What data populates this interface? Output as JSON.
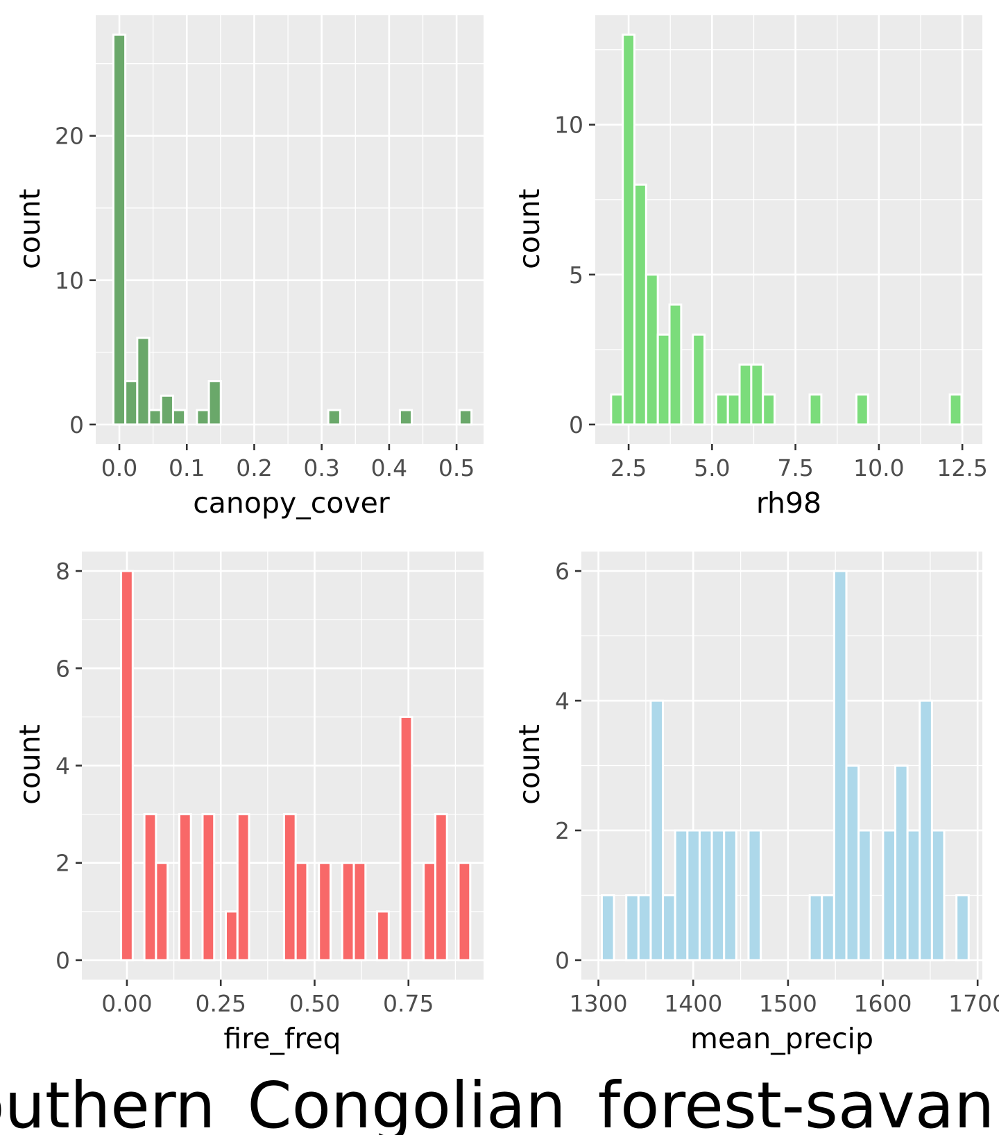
{
  "title": "Southern_Congolian_forest-savanna",
  "chart_data": [
    {
      "type": "bar",
      "xlabel": "canopy_cover",
      "ylabel": "count",
      "color": "#6AA86A",
      "xlim": [
        -0.035,
        0.54
      ],
      "ylim": [
        -1.35,
        28.35
      ],
      "x_ticks": [
        0.0,
        0.1,
        0.2,
        0.3,
        0.4,
        0.5
      ],
      "x_tick_labels": [
        "0.0",
        "0.1",
        "0.2",
        "0.3",
        "0.4",
        "0.5"
      ],
      "y_ticks": [
        0,
        10,
        20
      ],
      "y_tick_labels": [
        "0",
        "10",
        "20"
      ],
      "bin_width": 0.0177,
      "bin_centers": [
        0.0,
        0.0177,
        0.0354,
        0.0531,
        0.0708,
        0.0885,
        0.1239,
        0.1416,
        0.3186,
        0.4248,
        0.5133
      ],
      "counts": [
        27,
        3,
        6,
        1,
        2,
        1,
        1,
        3,
        1,
        1,
        1
      ]
    },
    {
      "type": "bar",
      "xlabel": "rh98",
      "ylabel": "count",
      "color": "#7BDC7B",
      "xlim": [
        1.5,
        13.1
      ],
      "ylim": [
        -0.65,
        13.65
      ],
      "x_ticks": [
        2.5,
        5.0,
        7.5,
        10.0,
        12.5
      ],
      "x_tick_labels": [
        "2.5",
        "5.0",
        "7.5",
        "10.0",
        "12.5"
      ],
      "y_ticks": [
        0,
        5,
        10
      ],
      "y_tick_labels": [
        "0",
        "5",
        "10"
      ],
      "bin_width": 0.35,
      "bin_centers": [
        2.15,
        2.5,
        2.85,
        3.2,
        3.55,
        3.9,
        4.6,
        5.3,
        5.65,
        6.0,
        6.35,
        6.7,
        8.1,
        9.5,
        12.3
      ],
      "counts": [
        1,
        13,
        8,
        5,
        3,
        4,
        3,
        1,
        1,
        2,
        2,
        1,
        1,
        1,
        1
      ]
    },
    {
      "type": "bar",
      "xlabel": "fire_freq",
      "ylabel": "count",
      "color": "#F86868",
      "xlim": [
        -0.12,
        0.95
      ],
      "ylim": [
        -0.4,
        8.4
      ],
      "x_ticks": [
        0.0,
        0.25,
        0.5,
        0.75
      ],
      "x_tick_labels": [
        "0.00",
        "0.25",
        "0.50",
        "0.75"
      ],
      "y_ticks": [
        0,
        2,
        4,
        6,
        8
      ],
      "y_tick_labels": [
        "0",
        "2",
        "4",
        "6",
        "8"
      ],
      "bin_width": 0.031,
      "bin_centers": [
        0.0,
        0.062,
        0.093,
        0.155,
        0.217,
        0.279,
        0.31,
        0.434,
        0.465,
        0.527,
        0.589,
        0.62,
        0.682,
        0.744,
        0.806,
        0.837,
        0.899
      ],
      "counts": [
        8,
        3,
        2,
        3,
        3,
        1,
        3,
        3,
        2,
        2,
        2,
        2,
        1,
        5,
        2,
        3,
        2
      ]
    },
    {
      "type": "bar",
      "xlabel": "mean_precip",
      "ylabel": "count",
      "color": "#ADD8EA",
      "xlim": [
        1282,
        1705
      ],
      "ylim": [
        -0.3,
        6.3
      ],
      "x_ticks": [
        1300,
        1400,
        1500,
        1600,
        1700
      ],
      "x_tick_labels": [
        "1300",
        "1400",
        "1500",
        "1600",
        "1700"
      ],
      "y_ticks": [
        0,
        2,
        4,
        6
      ],
      "y_tick_labels": [
        "0",
        "2",
        "4",
        "6"
      ],
      "bin_width": 12.9,
      "bin_centers": [
        1310,
        1335.8,
        1348.7,
        1361.6,
        1374.5,
        1387.4,
        1400.3,
        1413.2,
        1426.1,
        1439,
        1464.8,
        1529.3,
        1542.2,
        1555.1,
        1568,
        1580.9,
        1606.7,
        1619.6,
        1632.5,
        1645.4,
        1658.3,
        1684.1
      ],
      "counts": [
        1,
        1,
        1,
        4,
        1,
        2,
        2,
        2,
        2,
        2,
        2,
        1,
        1,
        6,
        3,
        2,
        2,
        3,
        2,
        4,
        2,
        1
      ]
    }
  ]
}
